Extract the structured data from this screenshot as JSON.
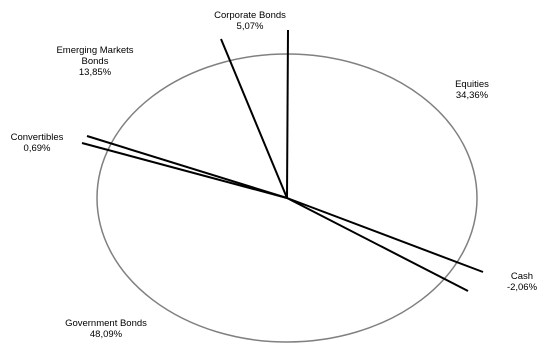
{
  "chart_data": {
    "type": "pie",
    "title": "",
    "legend": "none",
    "slices": [
      {
        "label": "Equities",
        "label_lines": [
          "Equities"
        ],
        "value_label": "34,36%",
        "value": 34.36
      },
      {
        "label": "Cash",
        "label_lines": [
          "Cash"
        ],
        "value_label": "-2,06%",
        "value": -2.06
      },
      {
        "label": "Government Bonds",
        "label_lines": [
          "Government Bonds"
        ],
        "value_label": "48,09%",
        "value": 48.09
      },
      {
        "label": "Convertibles",
        "label_lines": [
          "Convertibles"
        ],
        "value_label": "0,69%",
        "value": 0.69
      },
      {
        "label": "Emerging Markets Bonds",
        "label_lines": [
          "Emerging Markets",
          "Bonds"
        ],
        "value_label": "13,85%",
        "value": 13.85
      },
      {
        "label": "Corporate Bonds",
        "label_lines": [
          "Corporate Bonds"
        ],
        "value_label": "5,07%",
        "value": 5.07
      }
    ],
    "colors": {
      "outline": "#808080",
      "lines": "#000000",
      "background": "#ffffff"
    }
  }
}
